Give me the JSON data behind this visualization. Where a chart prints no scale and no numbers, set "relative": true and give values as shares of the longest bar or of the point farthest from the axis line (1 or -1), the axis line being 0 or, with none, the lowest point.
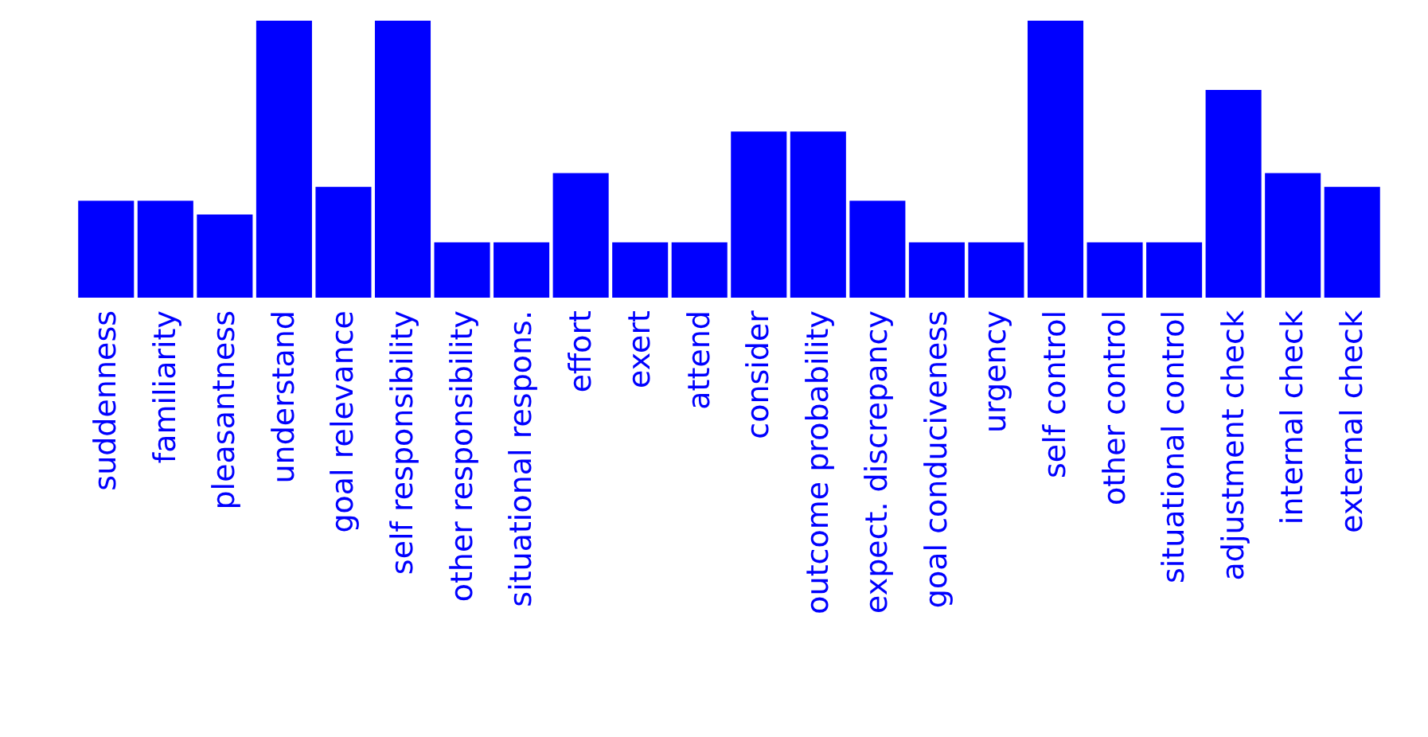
{
  "chart_data": {
    "type": "bar",
    "relative": true,
    "color": "#0000ff",
    "categories": [
      "suddenness",
      "familiarity",
      "pleasantness",
      "understand",
      "goal relevance",
      "self responsibility",
      "other responsibility",
      "situational respons.",
      "effort",
      "exert",
      "attend",
      "consider",
      "outcome probability",
      "expect. discrepancy",
      "goal conduciveness",
      "urgency",
      "self control",
      "other control",
      "situational control",
      "adjustment check",
      "internal check",
      "external check"
    ],
    "values": [
      0.35,
      0.35,
      0.3,
      1,
      0.4,
      1,
      0.2,
      0.2,
      0.45,
      0.2,
      0.2,
      0.6,
      0.6,
      0.35,
      0.2,
      0.2,
      1,
      0.2,
      0.2,
      0.75,
      0.45,
      0.4
    ]
  }
}
